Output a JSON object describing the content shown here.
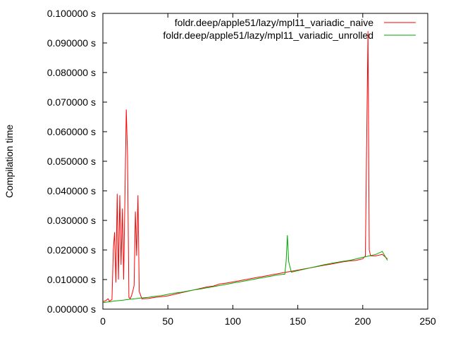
{
  "chart_data": {
    "type": "line",
    "title": "",
    "xlabel": "",
    "ylabel": "Compilation time",
    "xlim": [
      0,
      250
    ],
    "ylim": [
      0,
      0.1
    ],
    "grid": false,
    "legend_position": "top-right",
    "x_ticks": [
      {
        "value": 0,
        "label": "0"
      },
      {
        "value": 50,
        "label": "50"
      },
      {
        "value": 100,
        "label": "100"
      },
      {
        "value": 150,
        "label": "150"
      },
      {
        "value": 200,
        "label": "200"
      },
      {
        "value": 250,
        "label": "250"
      }
    ],
    "y_ticks": [
      {
        "value": 0.0,
        "label": "0.000000 s"
      },
      {
        "value": 0.01,
        "label": "0.010000 s"
      },
      {
        "value": 0.02,
        "label": "0.020000 s"
      },
      {
        "value": 0.03,
        "label": "0.030000 s"
      },
      {
        "value": 0.04,
        "label": "0.040000 s"
      },
      {
        "value": 0.05,
        "label": "0.050000 s"
      },
      {
        "value": 0.06,
        "label": "0.060000 s"
      },
      {
        "value": 0.07,
        "label": "0.070000 s"
      },
      {
        "value": 0.08,
        "label": "0.080000 s"
      },
      {
        "value": 0.09,
        "label": "0.090000 s"
      },
      {
        "value": 0.1,
        "label": "0.100000 s"
      }
    ],
    "series": [
      {
        "name": "foldr.deep/apple51/lazy/mpl11_variadic_naive",
        "color": "#ff0000",
        "points": [
          [
            0,
            0.0025
          ],
          [
            2,
            0.0028
          ],
          [
            4,
            0.0035
          ],
          [
            5,
            0.0027
          ],
          [
            6,
            0.003
          ],
          [
            7,
            0.0032
          ],
          [
            8,
            0.02
          ],
          [
            9,
            0.026
          ],
          [
            10,
            0.009
          ],
          [
            11,
            0.039
          ],
          [
            12,
            0.01
          ],
          [
            13,
            0.0385
          ],
          [
            14,
            0.015
          ],
          [
            15,
            0.034
          ],
          [
            16,
            0.01
          ],
          [
            17,
            0.038
          ],
          [
            18,
            0.0675
          ],
          [
            19,
            0.052
          ],
          [
            20,
            0.004
          ],
          [
            21,
            0.0035
          ],
          [
            22,
            0.0045
          ],
          [
            23,
            0.006
          ],
          [
            24,
            0.008
          ],
          [
            25,
            0.033
          ],
          [
            26,
            0.018
          ],
          [
            27,
            0.0385
          ],
          [
            28,
            0.006
          ],
          [
            30,
            0.0035
          ],
          [
            35,
            0.0036
          ],
          [
            40,
            0.004
          ],
          [
            45,
            0.0042
          ],
          [
            50,
            0.0045
          ],
          [
            55,
            0.005
          ],
          [
            60,
            0.0055
          ],
          [
            65,
            0.006
          ],
          [
            70,
            0.0065
          ],
          [
            75,
            0.007
          ],
          [
            80,
            0.0075
          ],
          [
            85,
            0.0078
          ],
          [
            90,
            0.0085
          ],
          [
            95,
            0.0088
          ],
          [
            100,
            0.0092
          ],
          [
            105,
            0.0096
          ],
          [
            110,
            0.01
          ],
          [
            115,
            0.0104
          ],
          [
            120,
            0.0108
          ],
          [
            125,
            0.0112
          ],
          [
            130,
            0.0116
          ],
          [
            135,
            0.012
          ],
          [
            140,
            0.0124
          ],
          [
            145,
            0.0128
          ],
          [
            150,
            0.0132
          ],
          [
            155,
            0.0136
          ],
          [
            160,
            0.014
          ],
          [
            165,
            0.0144
          ],
          [
            170,
            0.0148
          ],
          [
            175,
            0.0152
          ],
          [
            180,
            0.0156
          ],
          [
            185,
            0.016
          ],
          [
            190,
            0.0163
          ],
          [
            195,
            0.0165
          ],
          [
            200,
            0.017
          ],
          [
            202,
            0.018
          ],
          [
            203,
            0.056
          ],
          [
            204,
            0.094
          ],
          [
            205,
            0.02
          ],
          [
            206,
            0.018
          ],
          [
            210,
            0.018
          ],
          [
            215,
            0.0185
          ],
          [
            219,
            0.017
          ]
        ]
      },
      {
        "name": "foldr.deep/apple51/lazy/mpl11_variadic_unrolled",
        "color": "#00aa00",
        "points": [
          [
            0,
            0.0022
          ],
          [
            5,
            0.0025
          ],
          [
            10,
            0.0028
          ],
          [
            15,
            0.003
          ],
          [
            20,
            0.0033
          ],
          [
            25,
            0.0035
          ],
          [
            30,
            0.0038
          ],
          [
            35,
            0.004
          ],
          [
            40,
            0.0043
          ],
          [
            45,
            0.0046
          ],
          [
            50,
            0.005
          ],
          [
            55,
            0.0054
          ],
          [
            60,
            0.0057
          ],
          [
            65,
            0.0061
          ],
          [
            70,
            0.0065
          ],
          [
            75,
            0.0068
          ],
          [
            80,
            0.0072
          ],
          [
            85,
            0.0076
          ],
          [
            90,
            0.008
          ],
          [
            95,
            0.0084
          ],
          [
            100,
            0.0088
          ],
          [
            105,
            0.0092
          ],
          [
            110,
            0.0096
          ],
          [
            115,
            0.01
          ],
          [
            120,
            0.0104
          ],
          [
            125,
            0.0108
          ],
          [
            130,
            0.0112
          ],
          [
            135,
            0.0116
          ],
          [
            140,
            0.0118
          ],
          [
            141,
            0.016
          ],
          [
            142,
            0.025
          ],
          [
            143,
            0.016
          ],
          [
            145,
            0.0125
          ],
          [
            150,
            0.013
          ],
          [
            155,
            0.0135
          ],
          [
            160,
            0.014
          ],
          [
            165,
            0.0145
          ],
          [
            170,
            0.015
          ],
          [
            175,
            0.0154
          ],
          [
            180,
            0.0158
          ],
          [
            185,
            0.0162
          ],
          [
            190,
            0.0165
          ],
          [
            195,
            0.017
          ],
          [
            200,
            0.0175
          ],
          [
            205,
            0.018
          ],
          [
            210,
            0.0185
          ],
          [
            215,
            0.0195
          ],
          [
            219,
            0.0165
          ]
        ]
      }
    ]
  }
}
